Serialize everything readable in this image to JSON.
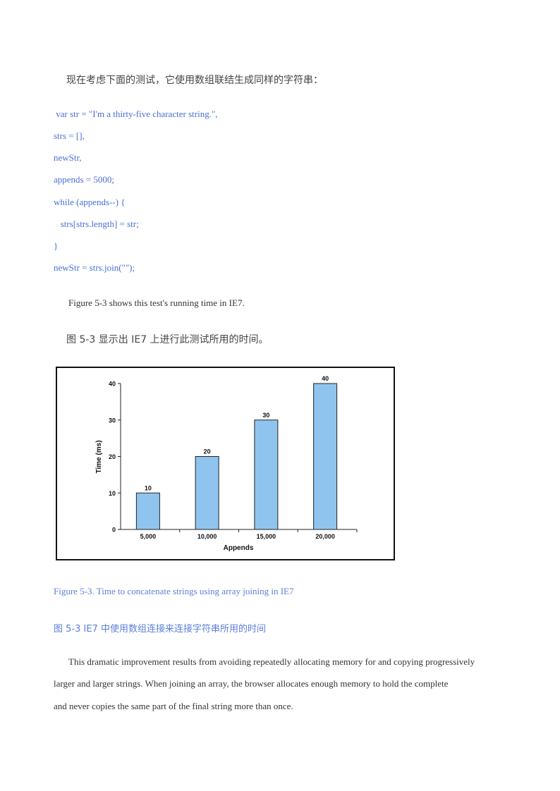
{
  "intro_zh": "现在考虑下面的测试，它使用数组联结生成同样的字符串：",
  "code_lines": [
    " var str = \"I'm a thirty-five character string.\",",
    "strs = [],",
    "newStr,",
    "appends = 5000;",
    "while (appends--) {",
    "   strs[strs.length] = str;",
    "}",
    "newStr = strs.join(\"\");"
  ],
  "figure_ref_en": "Figure 5-3 shows this test's running time in IE7.",
  "figure_ref_zh": "图 5-3 显示出 IE7 上进行此测试所用的时间。",
  "chart_data": {
    "type": "bar",
    "categories": [
      "5,000",
      "10,000",
      "15,000",
      "20,000"
    ],
    "values": [
      10,
      20,
      30,
      40
    ],
    "data_labels": [
      "10",
      "20",
      "30",
      "40"
    ],
    "xlabel": "Appends",
    "ylabel": "Time (ms)",
    "ylim": [
      0,
      40
    ],
    "yticks": [
      "0",
      "10",
      "20",
      "30",
      "40"
    ],
    "bar_color": "#8fc4ee",
    "grid": false
  },
  "caption_en": "Figure 5-3. Time to concatenate strings using array joining in IE7",
  "caption_zh": "图 5-3   IE7 中使用数组连接来连接字符串所用的时间",
  "paragraph_lines": [
    "This dramatic improvement results from avoiding repeatedly allocating memory for and copying progressively",
    "larger and larger strings. When joining an array, the browser allocates enough memory to hold the complete",
    "and never copies the same part of the final string more than once."
  ]
}
